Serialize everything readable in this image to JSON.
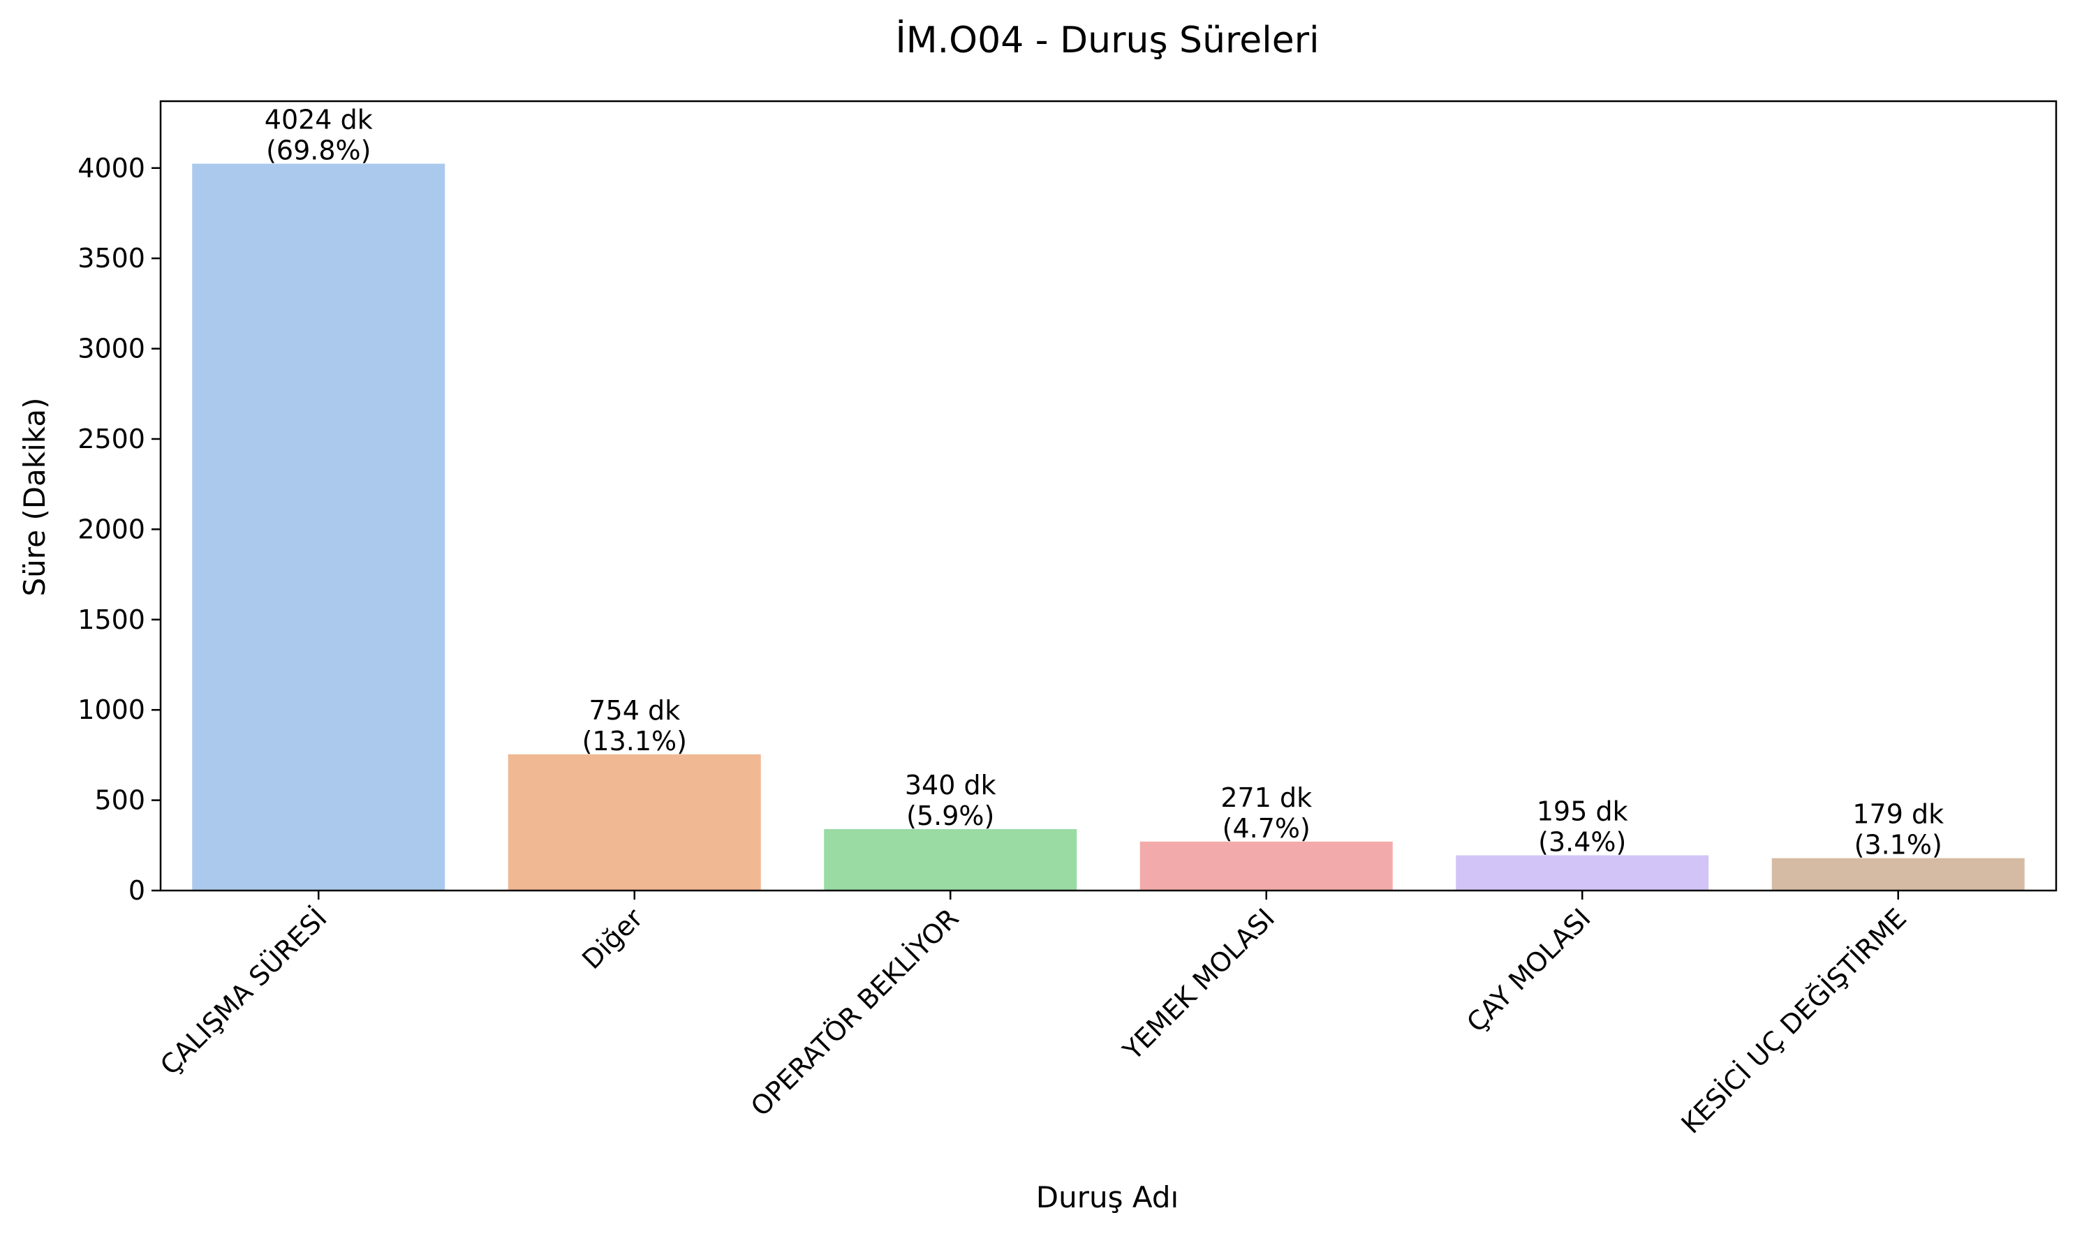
{
  "chart_data": {
    "type": "bar",
    "title": "İM.O04 - Duruş Süreleri",
    "xlabel": "Duruş Adı",
    "ylabel": "Süre (Dakika)",
    "ylim": [
      0,
      4370
    ],
    "yticks": [
      0,
      500,
      1000,
      1500,
      2000,
      2500,
      3000,
      3500,
      4000
    ],
    "ytick_labels": [
      "0",
      "500",
      "1000",
      "1500",
      "2000",
      "2500",
      "3000",
      "3500",
      "4000"
    ],
    "grid": false,
    "categories": [
      "ÇALIŞMA SÜRESİ",
      "Diğer",
      "OPERATÖR BEKLİYOR",
      "YEMEK MOLASI",
      "ÇAY MOLASI",
      "KESİCİ UÇ DEĞİŞTİRME"
    ],
    "values": [
      4024,
      754,
      340,
      271,
      195,
      179
    ],
    "value_labels": [
      "4024 dk",
      "754 dk",
      "340 dk",
      "271 dk",
      "195 dk",
      "179 dk"
    ],
    "percent_labels": [
      "(69.8%)",
      "(13.1%)",
      "(5.9%)",
      "(4.7%)",
      "(3.4%)",
      "(3.1%)"
    ],
    "colors": [
      "#abc9ed",
      "#f0b893",
      "#99dba3",
      "#f2abaa",
      "#d2c4f7",
      "#d5bba3"
    ]
  }
}
